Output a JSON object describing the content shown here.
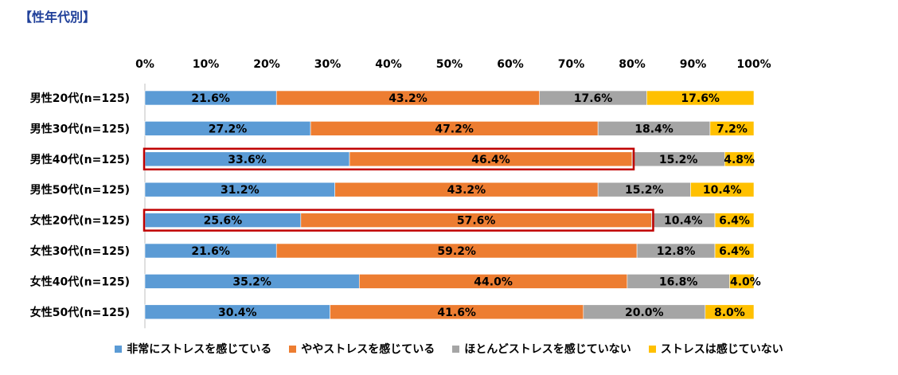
{
  "title": "【性年代別】",
  "chart_data": {
    "type": "bar",
    "orientation": "horizontal",
    "stacked": "percent",
    "title": "",
    "xlabel": "",
    "ylabel": "",
    "xlim": [
      0,
      100
    ],
    "x_ticks": [
      "0%",
      "10%",
      "20%",
      "30%",
      "40%",
      "50%",
      "60%",
      "70%",
      "80%",
      "90%",
      "100%"
    ],
    "legend_position": "bottom",
    "categories": [
      "男性20代(n=125)",
      "男性30代(n=125)",
      "男性40代(n=125)",
      "男性50代(n=125)",
      "女性20代(n=125)",
      "女性30代(n=125)",
      "女性40代(n=125)",
      "女性50代(n=125)"
    ],
    "highlighted_rows": [
      2,
      4
    ],
    "highlight_color": "#c00000",
    "series": [
      {
        "name": "非常にストレスを感じている",
        "color": "#5b9bd5",
        "values": [
          21.6,
          27.2,
          33.6,
          31.2,
          25.6,
          21.6,
          35.2,
          30.4
        ],
        "labels": [
          "21.6%",
          "27.2%",
          "33.6%",
          "31.2%",
          "25.6%",
          "21.6%",
          "35.2%",
          "30.4%"
        ]
      },
      {
        "name": "ややストレスを感じている",
        "color": "#ed7d31",
        "values": [
          43.2,
          47.2,
          46.4,
          43.2,
          57.6,
          59.2,
          44.0,
          41.6
        ],
        "labels": [
          "43.2%",
          "47.2%",
          "46.4%",
          "43.2%",
          "57.6%",
          "59.2%",
          "44.0%",
          "41.6%"
        ]
      },
      {
        "name": "ほとんどストレスを感じていない",
        "color": "#a5a5a5",
        "values": [
          17.6,
          18.4,
          15.2,
          15.2,
          10.4,
          12.8,
          16.8,
          20.0
        ],
        "labels": [
          "17.6%",
          "18.4%",
          "15.2%",
          "15.2%",
          "10.4%",
          "12.8%",
          "16.8%",
          "20.0%"
        ]
      },
      {
        "name": "ストレスは感じていない",
        "color": "#ffc000",
        "values": [
          17.6,
          7.2,
          4.8,
          10.4,
          6.4,
          6.4,
          4.0,
          8.0
        ],
        "labels": [
          "17.6%",
          "7.2%",
          "4.8%",
          "10.4%",
          "6.4%",
          "6.4%",
          "4.0%",
          "8.0%"
        ]
      }
    ]
  }
}
